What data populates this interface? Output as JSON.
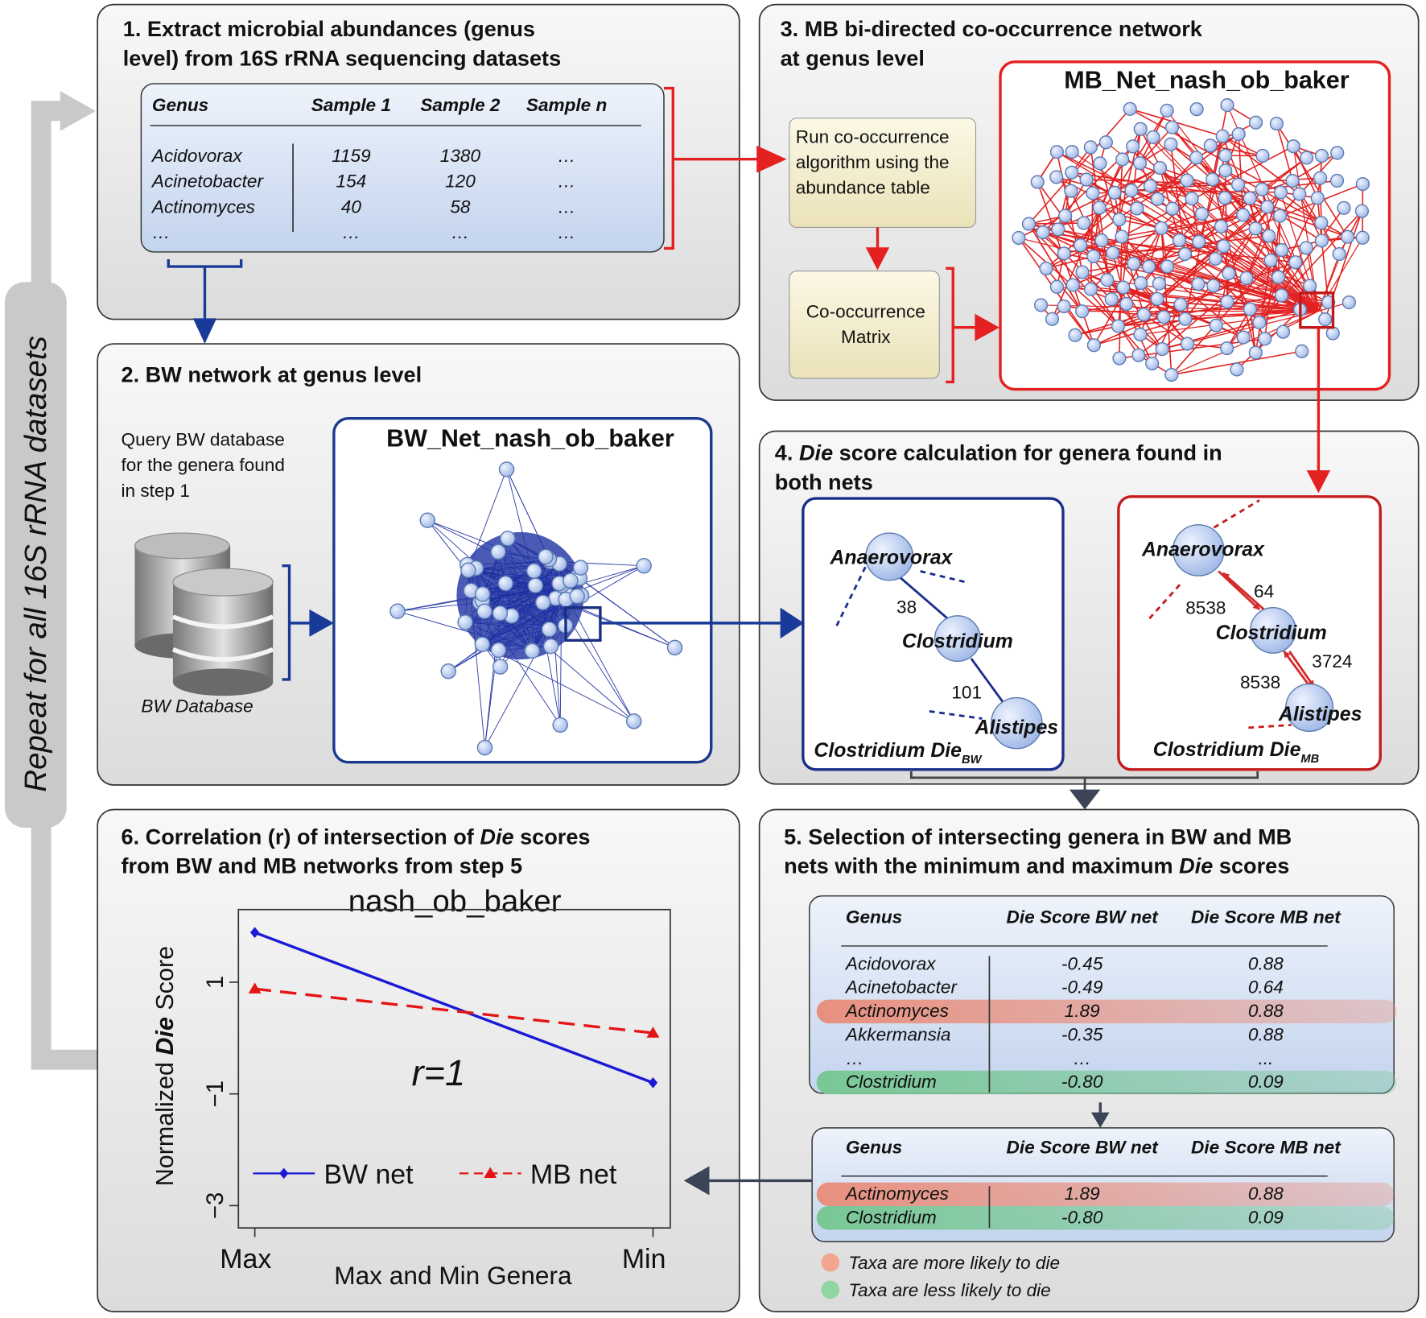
{
  "side_label": "Repeat for all 16S rRNA datasets",
  "panel1": {
    "title": [
      "1. Extract microbial abundances (genus",
      "level) from 16S rRNA sequencing datasets"
    ],
    "table": {
      "header": [
        "Genus",
        "Sample 1",
        "Sample 2",
        "Sample n"
      ],
      "rows": [
        [
          "Acidovorax",
          "1159",
          "1380",
          "…"
        ],
        [
          "Acinetobacter",
          "154",
          "120",
          "…"
        ],
        [
          "Actinomyces",
          "40",
          "58",
          "…"
        ],
        [
          "…",
          "…",
          "…",
          "…"
        ]
      ]
    }
  },
  "panel2": {
    "title": "2. BW network at genus level",
    "query": [
      "Query BW database",
      "for the genera found",
      "in step 1"
    ],
    "database": "BW Database",
    "network": "BW_Net_nash_ob_baker"
  },
  "panel3": {
    "title": [
      "3. MB bi-directed co-occurrence network",
      "at genus level"
    ],
    "step_run": [
      "Run co-occurrence",
      "algorithm using the",
      "abundance table"
    ],
    "step_matrix": [
      "Co-occurrence",
      "Matrix"
    ],
    "network": "MB_Net_nash_ob_baker"
  },
  "panel4": {
    "title": [
      [
        "4. ",
        "Die",
        " score calculation for genera found in"
      ],
      [
        "both nets"
      ]
    ],
    "bw": {
      "nodes": [
        "Anaerovorax",
        "Clostridium",
        "Alistipes"
      ],
      "edges": [
        "38",
        "101"
      ],
      "caption": [
        "Clostridium Die",
        "BW"
      ]
    },
    "mb": {
      "nodes": [
        "Anaerovorax",
        "Clostridium",
        "Alistipes"
      ],
      "edges": [
        "8538",
        "64",
        "8538",
        "3724"
      ],
      "caption": [
        "Clostridium Die",
        "MB"
      ]
    }
  },
  "panel5": {
    "title": [
      [
        "5. Selection of intersecting genera in BW and MB"
      ],
      [
        "nets with the minimum and maximum ",
        "Die",
        " scores"
      ]
    ],
    "table_all": {
      "header": [
        "Genus",
        "Die Score BW net",
        "Die Score MB net"
      ],
      "rows": [
        [
          "Acidovorax",
          "-0.45",
          "0.88"
        ],
        [
          "Acinetobacter",
          "-0.49",
          "0.64"
        ],
        [
          "Actinomyces",
          "1.89",
          "0.88"
        ],
        [
          "Akkermansia",
          "-0.35",
          "0.88"
        ],
        [
          "…",
          "…",
          "..."
        ],
        [
          "Clostridium",
          "-0.80",
          "0.09"
        ]
      ],
      "row_colors": [
        null,
        null,
        "#e8907f",
        null,
        null,
        "#79c795"
      ]
    },
    "table_selected": {
      "header": [
        "Genus",
        "Die Score BW net",
        "Die Score MB net"
      ],
      "rows": [
        [
          "Actinomyces",
          "1.89",
          "0.88"
        ],
        [
          "Clostridium",
          "-0.80",
          "0.09"
        ]
      ],
      "row_colors": [
        "#e8907f",
        "#79c795"
      ]
    },
    "legend": [
      {
        "text": "Taxa are more likely to die",
        "color": "#f2a58f"
      },
      {
        "text": "Taxa are less likely to die",
        "color": "#8fd6a2"
      }
    ]
  },
  "panel6": {
    "title": [
      [
        "6. Correlation (r) of intersection of ",
        "Die",
        " scores"
      ],
      [
        "from BW and MB networks from step 5"
      ]
    ],
    "chart": {
      "type": "line",
      "title": "nash_ob_baker",
      "ylabel": [
        "Normalized ",
        "Die",
        " Score"
      ],
      "xlabel": "Max and Min Genera",
      "categories": [
        "Max",
        "Min"
      ],
      "series": [
        {
          "name": "BW net",
          "color": "#1a1ad6",
          "marker": "diamond",
          "dashed": false,
          "values": [
            1.89,
            -0.8
          ]
        },
        {
          "name": "MB net",
          "color": "#e51515",
          "marker": "triangle",
          "dashed": true,
          "values": [
            0.88,
            0.09
          ]
        }
      ],
      "ylim": [
        -3.4,
        2.3
      ],
      "yticks": [
        {
          "value": -3,
          "label": "−3"
        },
        {
          "value": -1,
          "label": "−1"
        },
        {
          "value": 1,
          "label": "1"
        }
      ],
      "annotation": "r=1"
    }
  }
}
